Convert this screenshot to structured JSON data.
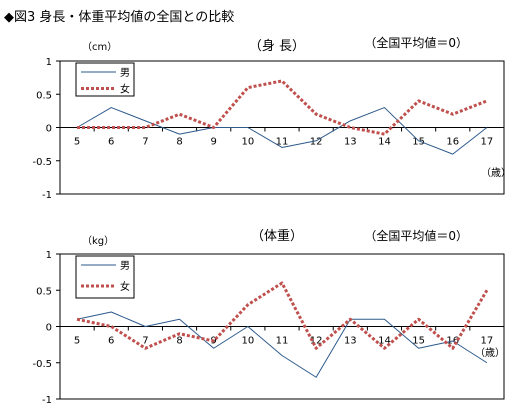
{
  "figure_title": "◆図3 身長・体重平均値の全国との比較",
  "chart_data": [
    {
      "type": "line",
      "title": "（身 長）",
      "subtitle": "（全国平均値＝0）",
      "ylabel": "（cm）",
      "xlabel": "（歳）",
      "categories": [
        "5",
        "6",
        "7",
        "8",
        "9",
        "10",
        "11",
        "12",
        "13",
        "14",
        "15",
        "16",
        "17"
      ],
      "ylim": [
        -1,
        1
      ],
      "yticks": [
        "1",
        "0.5",
        "0",
        "-0.5",
        "-1"
      ],
      "grid": false,
      "legend_position": "top-left",
      "series": [
        {
          "name": "男",
          "color": "#2e5a8c",
          "style": "solid",
          "values": [
            0,
            0.3,
            0.1,
            -0.1,
            0,
            0,
            -0.3,
            -0.2,
            0.1,
            0.3,
            -0.2,
            -0.4,
            0
          ]
        },
        {
          "name": "女",
          "color": "#c0504d",
          "style": "dotted",
          "values": [
            0,
            0,
            0,
            0.2,
            0,
            0.6,
            0.7,
            0.2,
            0,
            -0.1,
            0.4,
            0.2,
            0.4
          ]
        }
      ]
    },
    {
      "type": "line",
      "title": "（体重）",
      "subtitle": "（全国平均値＝0）",
      "ylabel": "（kg）",
      "xlabel": "（歳）",
      "categories": [
        "5",
        "6",
        "7",
        "8",
        "9",
        "10",
        "11",
        "12",
        "13",
        "14",
        "15",
        "16",
        "17"
      ],
      "ylim": [
        -1,
        1
      ],
      "yticks": [
        "1",
        "0.5",
        "0",
        "-0.5",
        "-1"
      ],
      "grid": false,
      "legend_position": "top-left",
      "series": [
        {
          "name": "男",
          "color": "#2e5a8c",
          "style": "solid",
          "values": [
            0.1,
            0.2,
            0,
            0.1,
            -0.3,
            0,
            -0.4,
            -0.7,
            0.1,
            0.1,
            -0.3,
            -0.2,
            -0.5
          ]
        },
        {
          "name": "女",
          "color": "#c0504d",
          "style": "dotted",
          "values": [
            0.1,
            0,
            -0.3,
            -0.1,
            -0.2,
            0.3,
            0.6,
            -0.3,
            0.1,
            -0.3,
            0.1,
            -0.3,
            0.5
          ]
        }
      ]
    }
  ]
}
